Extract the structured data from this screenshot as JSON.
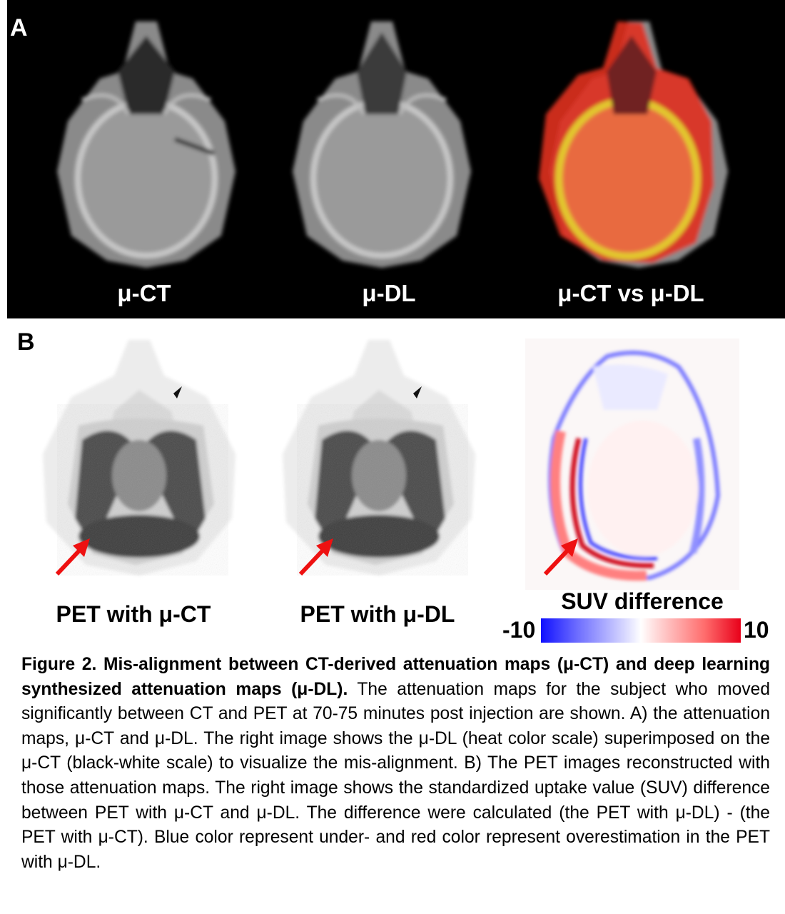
{
  "panel_a": {
    "letter": "A",
    "labels": [
      "μ-CT",
      "μ-DL",
      "μ-CT vs μ-DL"
    ]
  },
  "panel_b": {
    "letter": "B",
    "labels": [
      "PET with μ-CT",
      "PET with μ-DL"
    ],
    "colorbar": {
      "title": "SUV difference",
      "min": "-10",
      "max": "10",
      "low_color": "#1010ff",
      "high_color": "#e8001a"
    }
  },
  "caption": {
    "bold": "Figure 2. Mis-alignment between CT-derived attenuation maps (μ-CT) and deep learning  synthesized attenuation maps (μ-DL).",
    "text": " The attenuation maps for the subject who moved significantly between CT and PET at 70-75 minutes post injection are shown. A) the attenuation maps, μ-CT and μ-DL. The right image shows the μ-DL (heat color scale) superimposed on the μ-CT (black-white scale) to visualize the mis-alignment. B) The PET images reconstructed with those attenuation maps. The right image shows the standardized uptake value (SUV) difference between PET with μ-CT and μ-DL. The difference were calculated (the PET with μ-DL) - (the PET with μ-CT). Blue color represent under- and red color represent overestimation in the PET with μ-DL."
  },
  "arrow_color": "#ee1111"
}
